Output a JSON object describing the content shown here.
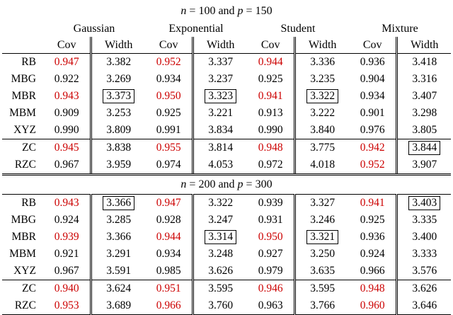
{
  "colors": {
    "highlight": "#cc0000"
  },
  "header": {
    "groups": [
      "Gaussian",
      "Exponential",
      "Student",
      "Mixture"
    ],
    "cov_label": "Cov",
    "width_label": "Width"
  },
  "tables": [
    {
      "caption": {
        "var_n": "n",
        "mid": " = 100 and ",
        "var_p": "p",
        "end": " = 150"
      },
      "rows": [
        {
          "label": "RB",
          "cells": [
            {
              "v": "0.947",
              "red": true
            },
            {
              "v": "3.382"
            },
            {
              "v": "0.952",
              "red": true
            },
            {
              "v": "3.337"
            },
            {
              "v": "0.944",
              "red": true
            },
            {
              "v": "3.336"
            },
            {
              "v": "0.936"
            },
            {
              "v": "3.418"
            }
          ]
        },
        {
          "label": "MBG",
          "cells": [
            {
              "v": "0.922"
            },
            {
              "v": "3.269"
            },
            {
              "v": "0.934"
            },
            {
              "v": "3.237"
            },
            {
              "v": "0.925"
            },
            {
              "v": "3.235"
            },
            {
              "v": "0.904"
            },
            {
              "v": "3.316"
            }
          ]
        },
        {
          "label": "MBR",
          "cells": [
            {
              "v": "0.943",
              "red": true
            },
            {
              "v": "3.373",
              "box": true
            },
            {
              "v": "0.950",
              "red": true
            },
            {
              "v": "3.323",
              "box": true
            },
            {
              "v": "0.941",
              "red": true
            },
            {
              "v": "3.322",
              "box": true
            },
            {
              "v": "0.934"
            },
            {
              "v": "3.407"
            }
          ]
        },
        {
          "label": "MBM",
          "cells": [
            {
              "v": "0.909"
            },
            {
              "v": "3.253"
            },
            {
              "v": "0.925"
            },
            {
              "v": "3.221"
            },
            {
              "v": "0.913"
            },
            {
              "v": "3.222"
            },
            {
              "v": "0.901"
            },
            {
              "v": "3.298"
            }
          ]
        },
        {
          "label": "XYZ",
          "cells": [
            {
              "v": "0.990"
            },
            {
              "v": "3.809"
            },
            {
              "v": "0.991"
            },
            {
              "v": "3.834"
            },
            {
              "v": "0.990"
            },
            {
              "v": "3.840"
            },
            {
              "v": "0.976"
            },
            {
              "v": "3.805"
            }
          ]
        },
        {
          "label": "ZC",
          "separator_above": true,
          "cells": [
            {
              "v": "0.945",
              "red": true
            },
            {
              "v": "3.838"
            },
            {
              "v": "0.955",
              "red": true
            },
            {
              "v": "3.814"
            },
            {
              "v": "0.948",
              "red": true
            },
            {
              "v": "3.775"
            },
            {
              "v": "0.942",
              "red": true
            },
            {
              "v": "3.844",
              "box": true
            }
          ]
        },
        {
          "label": "RZC",
          "cells": [
            {
              "v": "0.967"
            },
            {
              "v": "3.959"
            },
            {
              "v": "0.974"
            },
            {
              "v": "4.053"
            },
            {
              "v": "0.972"
            },
            {
              "v": "4.018"
            },
            {
              "v": "0.952",
              "red": true
            },
            {
              "v": "3.907"
            }
          ]
        }
      ]
    },
    {
      "caption": {
        "var_n": "n",
        "mid": " = 200 and ",
        "var_p": "p",
        "end": " = 300"
      },
      "rows": [
        {
          "label": "RB",
          "cells": [
            {
              "v": "0.943",
              "red": true
            },
            {
              "v": "3.366",
              "box": true
            },
            {
              "v": "0.947",
              "red": true
            },
            {
              "v": "3.322"
            },
            {
              "v": "0.939"
            },
            {
              "v": "3.327"
            },
            {
              "v": "0.941",
              "red": true
            },
            {
              "v": "3.403",
              "box": true
            }
          ]
        },
        {
          "label": "MBG",
          "cells": [
            {
              "v": "0.924"
            },
            {
              "v": "3.285"
            },
            {
              "v": "0.928"
            },
            {
              "v": "3.247"
            },
            {
              "v": "0.931"
            },
            {
              "v": "3.246"
            },
            {
              "v": "0.925"
            },
            {
              "v": "3.335"
            }
          ]
        },
        {
          "label": "MBR",
          "cells": [
            {
              "v": "0.939",
              "red": true
            },
            {
              "v": "3.366"
            },
            {
              "v": "0.944",
              "red": true
            },
            {
              "v": "3.314",
              "box": true
            },
            {
              "v": "0.950",
              "red": true
            },
            {
              "v": "3.321",
              "box": true
            },
            {
              "v": "0.936"
            },
            {
              "v": "3.400"
            }
          ]
        },
        {
          "label": "MBM",
          "cells": [
            {
              "v": "0.921"
            },
            {
              "v": "3.291"
            },
            {
              "v": "0.934"
            },
            {
              "v": "3.248"
            },
            {
              "v": "0.927"
            },
            {
              "v": "3.250"
            },
            {
              "v": "0.924"
            },
            {
              "v": "3.333"
            }
          ]
        },
        {
          "label": "XYZ",
          "cells": [
            {
              "v": "0.967"
            },
            {
              "v": "3.591"
            },
            {
              "v": "0.985"
            },
            {
              "v": "3.626"
            },
            {
              "v": "0.979"
            },
            {
              "v": "3.635"
            },
            {
              "v": "0.966"
            },
            {
              "v": "3.576"
            }
          ]
        },
        {
          "label": "ZC",
          "separator_above": true,
          "cells": [
            {
              "v": "0.940",
              "red": true
            },
            {
              "v": "3.624"
            },
            {
              "v": "0.951",
              "red": true
            },
            {
              "v": "3.595"
            },
            {
              "v": "0.946",
              "red": true
            },
            {
              "v": "3.595"
            },
            {
              "v": "0.948",
              "red": true
            },
            {
              "v": "3.626"
            }
          ]
        },
        {
          "label": "RZC",
          "cells": [
            {
              "v": "0.953",
              "red": true
            },
            {
              "v": "3.689"
            },
            {
              "v": "0.966",
              "red": true
            },
            {
              "v": "3.760"
            },
            {
              "v": "0.963"
            },
            {
              "v": "3.766"
            },
            {
              "v": "0.960",
              "red": true
            },
            {
              "v": "3.646"
            }
          ]
        }
      ]
    }
  ]
}
